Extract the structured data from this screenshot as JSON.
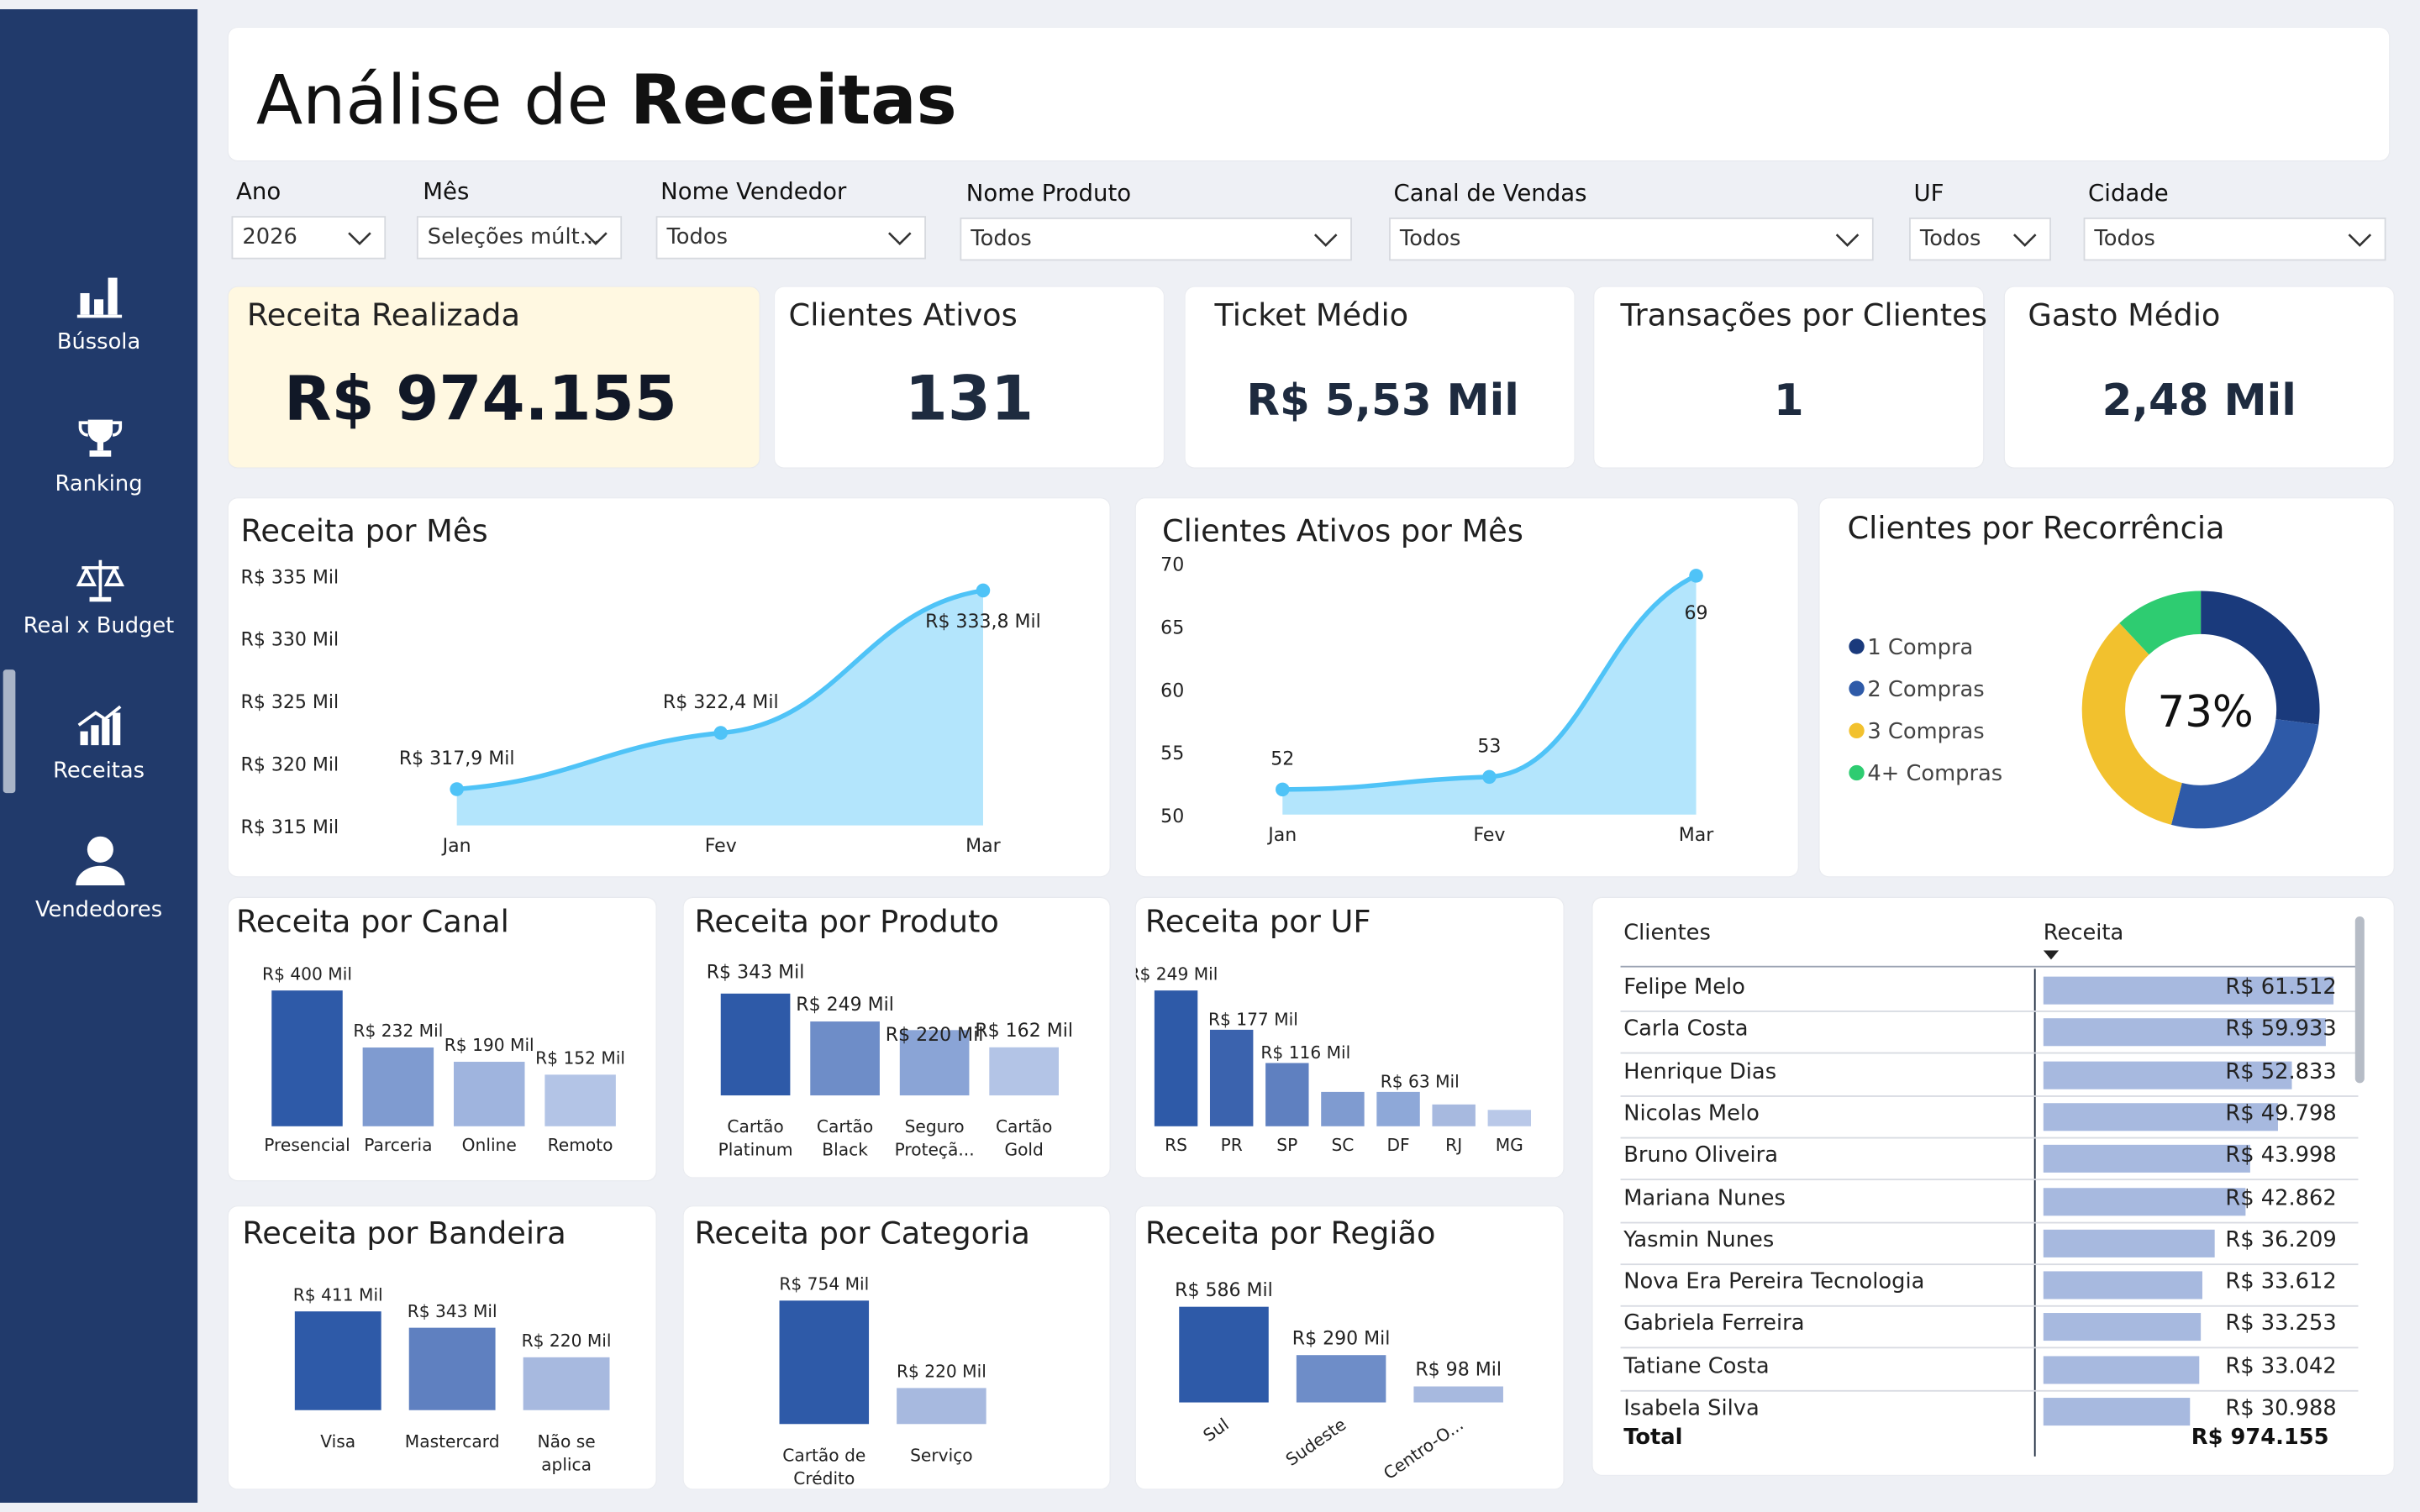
{
  "sidebar": {
    "items": [
      {
        "label": "Bússola",
        "icon": "bar-chart-icon"
      },
      {
        "label": "Ranking",
        "icon": "trophy-icon"
      },
      {
        "label": "Real x Budget",
        "icon": "scale-icon"
      },
      {
        "label": "Receitas",
        "icon": "growth-chart-icon",
        "active": true
      },
      {
        "label": "Vendedores",
        "icon": "user-icon"
      }
    ]
  },
  "header": {
    "title_light": "Análise de ",
    "title_bold": "Receitas"
  },
  "filters": {
    "ano": {
      "label": "Ano",
      "value": "2026"
    },
    "mes": {
      "label": "Mês",
      "value": "Seleções múlt..."
    },
    "vendedor": {
      "label": "Nome Vendedor",
      "value": "Todos"
    },
    "produto": {
      "label": "Nome Produto",
      "value": "Todos"
    },
    "canal": {
      "label": "Canal de Vendas",
      "value": "Todos"
    },
    "uf": {
      "label": "UF",
      "value": "Todos"
    },
    "cidade": {
      "label": "Cidade",
      "value": "Todos"
    }
  },
  "kpis": {
    "receita": {
      "title": "Receita Realizada",
      "value": "R$ 974.155"
    },
    "clientes": {
      "title": "Clientes Ativos",
      "value": "131"
    },
    "ticket": {
      "title": "Ticket Médio",
      "value": "R$ 5,53 Mil"
    },
    "transacoes": {
      "title": "Transações por Clientes",
      "value": "1"
    },
    "gasto": {
      "title": "Gasto Médio",
      "value": "2,48 Mil"
    }
  },
  "colors": {
    "sidebar": "#213a6b",
    "area_fill": "#b3e5fc",
    "area_line": "#4fc3f7",
    "bar_dark": "#2e5aa8",
    "highlight_kpi": "#fff8e1"
  },
  "chart_data": [
    {
      "type": "area",
      "title": "Receita por Mês",
      "categories": [
        "Jan",
        "Fev",
        "Mar"
      ],
      "values": [
        317.9,
        322.4,
        333.8
      ],
      "labels": [
        "R$ 317,9 Mil",
        "R$ 322,4 Mil",
        "R$ 333,8 Mil"
      ],
      "yticks": [
        "R$ 335 Mil",
        "R$ 330 Mil",
        "R$ 325 Mil",
        "R$ 320 Mil",
        "R$ 315 Mil"
      ],
      "ylim": [
        315,
        335
      ]
    },
    {
      "type": "area",
      "title": "Clientes Ativos por Mês",
      "categories": [
        "Jan",
        "Fev",
        "Mar"
      ],
      "values": [
        52,
        53,
        69
      ],
      "labels": [
        "52",
        "53",
        "69"
      ],
      "yticks": [
        "70",
        "65",
        "60",
        "55",
        "50"
      ],
      "ylim": [
        50,
        70
      ]
    },
    {
      "type": "pie",
      "title": "Clientes por Recorrência",
      "center_label": "73%",
      "slices": [
        {
          "name": "1 Compra",
          "value": 27,
          "color": "#1a3a7c"
        },
        {
          "name": "2 Compras",
          "value": 27,
          "color": "#2e5aa8"
        },
        {
          "name": "3 Compras",
          "value": 34,
          "color": "#f2c12e"
        },
        {
          "name": "4+ Compras",
          "value": 12,
          "color": "#2ecc71"
        }
      ]
    },
    {
      "type": "bar",
      "title": "Receita por Canal",
      "categories": [
        "Presencial",
        "Parceria",
        "Online",
        "Remoto"
      ],
      "values": [
        400,
        232,
        190,
        152
      ],
      "labels": [
        "R$ 400 Mil",
        "R$ 232 Mil",
        "R$ 190 Mil",
        "R$ 152 Mil"
      ]
    },
    {
      "type": "bar",
      "title": "Receita por Produto",
      "categories": [
        "Cartão|Platinum",
        "Cartão|Black",
        "Seguro|Proteçã...",
        "Cartão|Gold"
      ],
      "values": [
        343,
        249,
        220,
        162
      ],
      "labels": [
        "R$ 343 Mil",
        "R$ 249 Mil",
        "R$ 220 Mil",
        "R$ 162 Mil"
      ]
    },
    {
      "type": "bar",
      "title": "Receita por UF",
      "categories": [
        "RS",
        "PR",
        "SP",
        "SC",
        "DF",
        "RJ",
        "MG"
      ],
      "values": [
        249,
        177,
        116,
        63,
        63,
        40,
        30
      ],
      "labels": [
        "R$ 249 Mil",
        "R$ 177 Mil",
        "R$ 116 Mil",
        "",
        "R$ 63 Mil",
        "",
        ""
      ]
    },
    {
      "type": "bar",
      "title": "Receita por Bandeira",
      "categories": [
        "Visa",
        "Mastercard",
        "Não se|aplica"
      ],
      "values": [
        411,
        343,
        220
      ],
      "labels": [
        "R$ 411 Mil",
        "R$ 343 Mil",
        "R$ 220 Mil"
      ]
    },
    {
      "type": "bar",
      "title": "Receita por Categoria",
      "categories": [
        "Cartão de|Crédito",
        "Serviço"
      ],
      "values": [
        754,
        220
      ],
      "labels": [
        "R$ 754 Mil",
        "R$ 220 Mil"
      ]
    },
    {
      "type": "bar",
      "title": "Receita por Região",
      "categories": [
        "Sul",
        "Sudeste",
        "Centro-O..."
      ],
      "values": [
        586,
        290,
        98
      ],
      "labels": [
        "R$ 586 Mil",
        "R$ 290 Mil",
        "R$ 98 Mil"
      ]
    }
  ],
  "table": {
    "col_clientes": "Clientes",
    "col_receita": "Receita",
    "rows": [
      {
        "name": "Felipe Melo",
        "value": "R$ 61.512",
        "v": 61512
      },
      {
        "name": "Carla Costa",
        "value": "R$ 59.933",
        "v": 59933
      },
      {
        "name": "Henrique Dias",
        "value": "R$ 52.833",
        "v": 52833
      },
      {
        "name": "Nicolas Melo",
        "value": "R$ 49.798",
        "v": 49798
      },
      {
        "name": "Bruno Oliveira",
        "value": "R$ 43.998",
        "v": 43998
      },
      {
        "name": "Mariana Nunes",
        "value": "R$ 42.862",
        "v": 42862
      },
      {
        "name": "Yasmin Nunes",
        "value": "R$ 36.209",
        "v": 36209
      },
      {
        "name": "Nova Era Pereira Tecnologia",
        "value": "R$ 33.612",
        "v": 33612
      },
      {
        "name": "Gabriela Ferreira",
        "value": "R$ 33.253",
        "v": 33253
      },
      {
        "name": "Tatiane Costa",
        "value": "R$ 33.042",
        "v": 33042
      },
      {
        "name": "Isabela Silva",
        "value": "R$ 30.988",
        "v": 30988
      }
    ],
    "total_label": "Total",
    "total_value": "R$ 974.155"
  }
}
